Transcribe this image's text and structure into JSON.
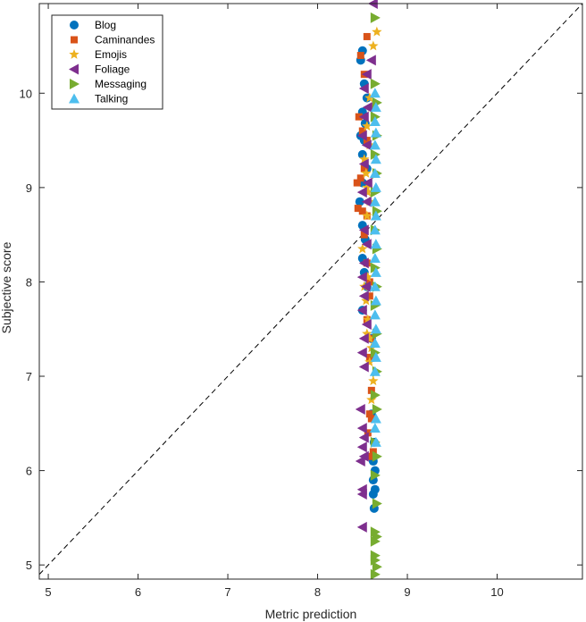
{
  "chart_data": {
    "type": "scatter",
    "xlabel": "Metric prediction",
    "ylabel": "Subjective score",
    "xlim": [
      4.9,
      10.95
    ],
    "ylim": [
      4.85,
      10.95
    ],
    "xticks": [
      5,
      6,
      7,
      8,
      9,
      10
    ],
    "yticks": [
      5,
      6,
      7,
      8,
      9,
      10
    ],
    "grid": false,
    "legend_position": "top-left",
    "reference_line": "dashed y = x",
    "series": [
      {
        "name": "Blog",
        "marker": "circle",
        "color": "#0072BD",
        "points": [
          [
            8.5,
            10.45
          ],
          [
            8.48,
            10.35
          ],
          [
            8.52,
            10.1
          ],
          [
            8.55,
            9.95
          ],
          [
            8.5,
            9.8
          ],
          [
            8.53,
            9.68
          ],
          [
            8.48,
            9.55
          ],
          [
            8.52,
            9.5
          ],
          [
            8.5,
            9.35
          ],
          [
            8.55,
            9.2
          ],
          [
            8.5,
            9.05
          ],
          [
            8.47,
            8.85
          ],
          [
            8.5,
            8.6
          ],
          [
            8.53,
            8.45
          ],
          [
            8.5,
            8.25
          ],
          [
            8.52,
            8.1
          ],
          [
            8.55,
            7.95
          ],
          [
            8.5,
            7.7
          ],
          [
            8.6,
            7.4
          ],
          [
            8.62,
            7.2
          ],
          [
            8.6,
            6.6
          ],
          [
            8.63,
            6.3
          ],
          [
            8.62,
            6.1
          ],
          [
            8.64,
            6.0
          ],
          [
            8.62,
            5.9
          ],
          [
            8.64,
            5.8
          ],
          [
            8.62,
            5.75
          ],
          [
            8.63,
            5.6
          ]
        ]
      },
      {
        "name": "Caminandes",
        "marker": "square",
        "color": "#D95319",
        "points": [
          [
            8.55,
            10.6
          ],
          [
            8.48,
            10.4
          ],
          [
            8.52,
            10.2
          ],
          [
            8.46,
            9.75
          ],
          [
            8.5,
            9.6
          ],
          [
            8.55,
            9.5
          ],
          [
            8.44,
            9.05
          ],
          [
            8.48,
            9.1
          ],
          [
            8.52,
            9.2
          ],
          [
            8.45,
            8.78
          ],
          [
            8.5,
            8.75
          ],
          [
            8.55,
            8.7
          ],
          [
            8.52,
            8.5
          ],
          [
            8.55,
            8.2
          ],
          [
            8.58,
            8.0
          ],
          [
            8.58,
            7.85
          ],
          [
            8.55,
            7.6
          ],
          [
            8.6,
            7.4
          ],
          [
            8.58,
            7.2
          ],
          [
            8.6,
            6.85
          ],
          [
            8.58,
            6.6
          ],
          [
            8.6,
            6.55
          ],
          [
            8.56,
            6.4
          ],
          [
            8.58,
            6.15
          ],
          [
            8.62,
            6.2
          ]
        ]
      },
      {
        "name": "Emojis",
        "marker": "star",
        "color": "#EDB120",
        "points": [
          [
            8.66,
            10.65
          ],
          [
            8.62,
            10.5
          ],
          [
            8.58,
            9.95
          ],
          [
            8.6,
            9.85
          ],
          [
            8.55,
            9.65
          ],
          [
            8.58,
            9.45
          ],
          [
            8.52,
            9.3
          ],
          [
            8.54,
            9.15
          ],
          [
            8.55,
            9.0
          ],
          [
            8.56,
            8.95
          ],
          [
            8.58,
            8.85
          ],
          [
            8.55,
            8.7
          ],
          [
            8.5,
            8.35
          ],
          [
            8.56,
            8.05
          ],
          [
            8.52,
            7.95
          ],
          [
            8.54,
            7.8
          ],
          [
            8.56,
            7.6
          ],
          [
            8.55,
            7.45
          ],
          [
            8.58,
            7.4
          ],
          [
            8.6,
            7.3
          ],
          [
            8.58,
            7.15
          ],
          [
            8.62,
            6.95
          ],
          [
            8.6,
            6.75
          ]
        ]
      },
      {
        "name": "Foliage",
        "marker": "triangle-left",
        "color": "#7E2F8E",
        "points": [
          [
            8.62,
            10.95
          ],
          [
            8.6,
            10.35
          ],
          [
            8.55,
            10.2
          ],
          [
            8.52,
            10.05
          ],
          [
            8.56,
            9.85
          ],
          [
            8.52,
            9.75
          ],
          [
            8.5,
            9.55
          ],
          [
            8.55,
            9.45
          ],
          [
            8.52,
            9.25
          ],
          [
            8.56,
            9.05
          ],
          [
            8.5,
            8.95
          ],
          [
            8.55,
            8.85
          ],
          [
            8.52,
            8.55
          ],
          [
            8.55,
            8.4
          ],
          [
            8.52,
            8.2
          ],
          [
            8.5,
            8.05
          ],
          [
            8.54,
            7.95
          ],
          [
            8.52,
            7.85
          ],
          [
            8.5,
            7.7
          ],
          [
            8.55,
            7.55
          ],
          [
            8.52,
            7.4
          ],
          [
            8.5,
            7.25
          ],
          [
            8.52,
            7.1
          ],
          [
            8.48,
            6.65
          ],
          [
            8.5,
            6.45
          ],
          [
            8.52,
            6.35
          ],
          [
            8.5,
            6.25
          ],
          [
            8.52,
            6.15
          ],
          [
            8.48,
            6.1
          ],
          [
            8.5,
            5.8
          ],
          [
            8.5,
            5.75
          ],
          [
            8.5,
            5.4
          ]
        ]
      },
      {
        "name": "Messaging",
        "marker": "triangle-right",
        "color": "#77AC30",
        "points": [
          [
            8.64,
            10.8
          ],
          [
            8.64,
            10.1
          ],
          [
            8.66,
            9.9
          ],
          [
            8.64,
            9.75
          ],
          [
            8.66,
            9.55
          ],
          [
            8.64,
            9.35
          ],
          [
            8.66,
            9.15
          ],
          [
            8.64,
            8.95
          ],
          [
            8.66,
            8.75
          ],
          [
            8.64,
            8.55
          ],
          [
            8.66,
            8.35
          ],
          [
            8.64,
            8.15
          ],
          [
            8.66,
            7.95
          ],
          [
            8.64,
            7.75
          ],
          [
            8.66,
            7.45
          ],
          [
            8.64,
            7.25
          ],
          [
            8.66,
            7.05
          ],
          [
            8.64,
            6.8
          ],
          [
            8.66,
            6.65
          ],
          [
            8.64,
            6.3
          ],
          [
            8.66,
            6.15
          ],
          [
            8.64,
            5.95
          ],
          [
            8.66,
            5.65
          ],
          [
            8.64,
            5.35
          ],
          [
            8.66,
            5.3
          ],
          [
            8.64,
            5.25
          ],
          [
            8.64,
            5.1
          ],
          [
            8.64,
            5.05
          ],
          [
            8.66,
            4.98
          ],
          [
            8.64,
            4.9
          ]
        ]
      },
      {
        "name": "Talking",
        "marker": "triangle-up",
        "color": "#4DBEEE",
        "points": [
          [
            8.64,
            10.0
          ],
          [
            8.65,
            9.85
          ],
          [
            8.64,
            9.7
          ],
          [
            8.65,
            9.58
          ],
          [
            8.64,
            9.45
          ],
          [
            8.65,
            9.3
          ],
          [
            8.64,
            9.15
          ],
          [
            8.65,
            9.0
          ],
          [
            8.64,
            8.85
          ],
          [
            8.65,
            8.7
          ],
          [
            8.64,
            8.55
          ],
          [
            8.65,
            8.4
          ],
          [
            8.64,
            8.25
          ],
          [
            8.65,
            8.1
          ],
          [
            8.64,
            7.95
          ],
          [
            8.65,
            7.8
          ],
          [
            8.64,
            7.65
          ],
          [
            8.65,
            7.5
          ],
          [
            8.64,
            7.35
          ],
          [
            8.65,
            7.2
          ],
          [
            8.64,
            7.05
          ],
          [
            8.65,
            6.55
          ],
          [
            8.64,
            6.45
          ],
          [
            8.65,
            6.3
          ]
        ]
      }
    ]
  }
}
